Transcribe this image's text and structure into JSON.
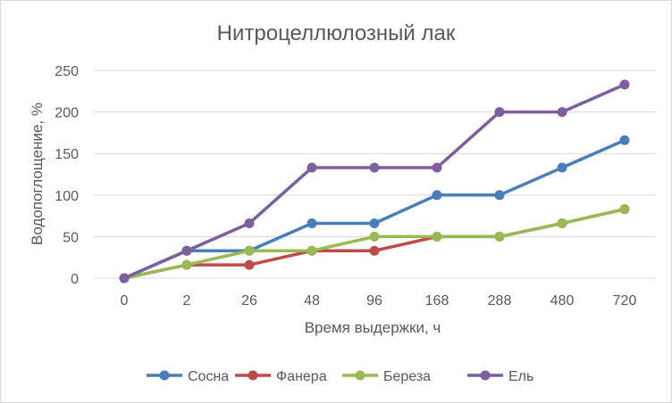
{
  "chart_data": {
    "type": "line",
    "title": "Нитроцеллюлозный лак",
    "xlabel": "Время выдержки, ч",
    "ylabel": "Водопоглощение, %",
    "categories": [
      "0",
      "2",
      "26",
      "48",
      "96",
      "168",
      "288",
      "480",
      "720"
    ],
    "ylim": [
      0,
      250
    ],
    "yticks": [
      0,
      50,
      100,
      150,
      200,
      250
    ],
    "grid": true,
    "legend_position": "bottom",
    "series": [
      {
        "name": "Сосна",
        "color": "#4a7ebb",
        "values": [
          0,
          33,
          33,
          66,
          66,
          100,
          100,
          133,
          166
        ]
      },
      {
        "name": "Фанера",
        "color": "#be4b48",
        "values": [
          0,
          16,
          16,
          33,
          33,
          50,
          50,
          66,
          83
        ]
      },
      {
        "name": "Береза",
        "color": "#98b954",
        "values": [
          0,
          16,
          33,
          33,
          50,
          50,
          50,
          66,
          83
        ]
      },
      {
        "name": "Ель",
        "color": "#7d5fa0",
        "values": [
          0,
          33,
          66,
          133,
          133,
          133,
          200,
          200,
          233
        ]
      }
    ]
  }
}
